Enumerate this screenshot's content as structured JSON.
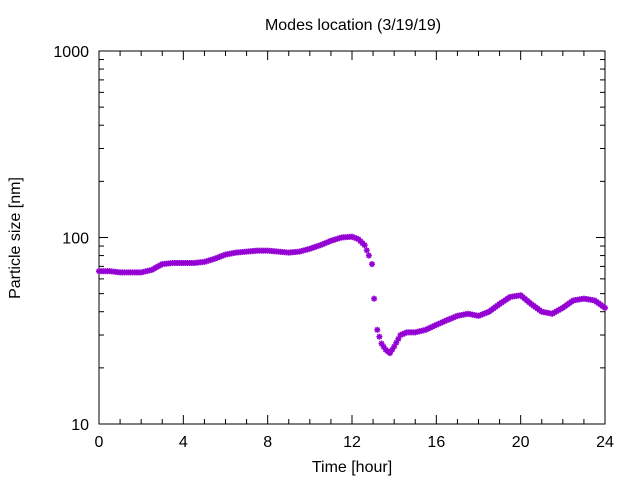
{
  "chart_data": {
    "type": "scatter",
    "title": "Modes location (3/19/19)",
    "xlabel": "Time [hour]",
    "ylabel": "Particle size [nm]",
    "xlim": [
      0,
      24
    ],
    "ylim": [
      10,
      1000
    ],
    "yscale": "log",
    "grid": false,
    "legend": "none",
    "x_ticks": [
      "0",
      "4",
      "8",
      "12",
      "16",
      "20",
      "24"
    ],
    "y_ticks": [
      "10",
      "100",
      "1000"
    ],
    "marker_color": "#9400d3",
    "series": [
      {
        "x": [
          0,
          0.5,
          1,
          1.5,
          2,
          2.5,
          3,
          3.5,
          4,
          4.5,
          5,
          5.5,
          6,
          6.5,
          7,
          7.5,
          8,
          8.5,
          9,
          9.5,
          10,
          10.5,
          11,
          11.5,
          12,
          12.3,
          12.6,
          12.8,
          12.95,
          13.05,
          13.2,
          13.4,
          13.6,
          13.8,
          14,
          14.3,
          14.6,
          15,
          15.5,
          16,
          16.5,
          17,
          17.5,
          18,
          18.5,
          19,
          19.5,
          20,
          20.5,
          21,
          21.5,
          22,
          22.5,
          23,
          23.5,
          24
        ],
        "y": [
          66,
          66,
          65,
          65,
          65,
          67,
          72,
          73,
          73,
          73,
          74,
          77,
          81,
          83,
          84,
          85,
          85,
          84,
          83,
          84,
          87,
          91,
          96,
          100,
          101,
          98,
          91,
          80,
          72,
          47,
          32,
          27,
          25,
          24,
          26,
          30,
          31,
          31,
          32,
          34,
          36,
          38,
          39,
          38,
          40,
          44,
          48,
          49,
          44,
          40,
          39,
          42,
          46,
          47,
          46,
          42
        ]
      }
    ]
  }
}
